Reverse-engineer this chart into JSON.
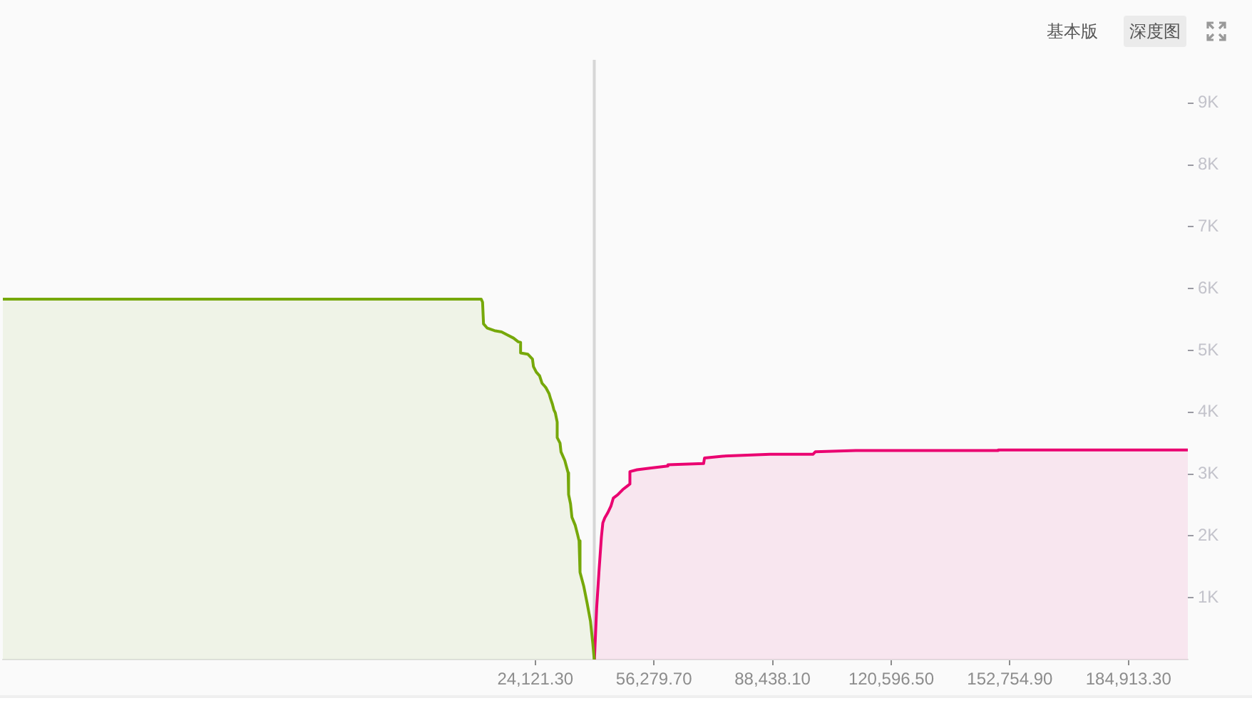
{
  "chart_data": {
    "type": "area",
    "annotations": [
      "基本版",
      "深度图"
    ],
    "xlim": [
      -120200,
      201000
    ],
    "xticks": [
      {
        "value": 24121.3,
        "label": "24,121.30"
      },
      {
        "value": 56279.7,
        "label": "56,279.70"
      },
      {
        "value": 88438.1,
        "label": "88,438.10"
      },
      {
        "value": 120596.5,
        "label": "120,596.50"
      },
      {
        "value": 152754.9,
        "label": "152,754.90"
      },
      {
        "value": 184913.3,
        "label": "184,913.30"
      }
    ],
    "ylim": [
      0,
      9700
    ],
    "yticks": [
      {
        "value": 1000,
        "label": "1K"
      },
      {
        "value": 2000,
        "label": "2K"
      },
      {
        "value": 3000,
        "label": "3K"
      },
      {
        "value": 4000,
        "label": "4K"
      },
      {
        "value": 5000,
        "label": "5K"
      },
      {
        "value": 6000,
        "label": "6K"
      },
      {
        "value": 7000,
        "label": "7K"
      },
      {
        "value": 8000,
        "label": "8K"
      },
      {
        "value": 9000,
        "label": "9K"
      }
    ],
    "series": [
      {
        "color": "#76a80a",
        "x": [
          -120200,
          9450,
          9830,
          10090,
          11120,
          13050,
          14990,
          16280,
          18210,
          19500,
          20140,
          20140,
          22070,
          23360,
          23620,
          24390,
          25290,
          25940,
          26970,
          27870,
          28260,
          28770,
          29160,
          29550,
          30060,
          30060,
          30830,
          31090,
          32120,
          33030,
          33150,
          33670,
          34060,
          34960,
          35600,
          35990,
          36250,
          37280,
          38180,
          39080,
          39720,
          40100
        ],
        "values": [
          5830,
          5830,
          5780,
          5430,
          5360,
          5320,
          5300,
          5260,
          5200,
          5140,
          5130,
          4960,
          4940,
          4860,
          4740,
          4650,
          4590,
          4470,
          4400,
          4300,
          4220,
          4130,
          4040,
          3990,
          3840,
          3590,
          3500,
          3360,
          3220,
          3020,
          2670,
          2520,
          2300,
          2170,
          2020,
          1920,
          1410,
          1180,
          910,
          620,
          260,
          0
        ]
      },
      {
        "color": "#ea0070",
        "x": [
          40150,
          40750,
          41400,
          42040,
          42430,
          42940,
          43720,
          44620,
          45260,
          46550,
          47840,
          49130,
          49770,
          49770,
          51710,
          55570,
          60080,
          60080,
          69740,
          70000,
          74900,
          87780,
          99380,
          100020,
          110970,
          149600,
          149600,
          201000
        ],
        "values": [
          0,
          830,
          1440,
          1980,
          2210,
          2290,
          2370,
          2480,
          2610,
          2670,
          2750,
          2810,
          2840,
          3040,
          3070,
          3100,
          3130,
          3150,
          3170,
          3260,
          3290,
          3320,
          3320,
          3360,
          3380,
          3380,
          3390,
          3390
        ]
      }
    ],
    "ref_lines": [
      {
        "axis": "x",
        "value": 40110,
        "color": "#d6d6d6"
      }
    ],
    "grid": false,
    "legend": false,
    "marker": "none"
  }
}
